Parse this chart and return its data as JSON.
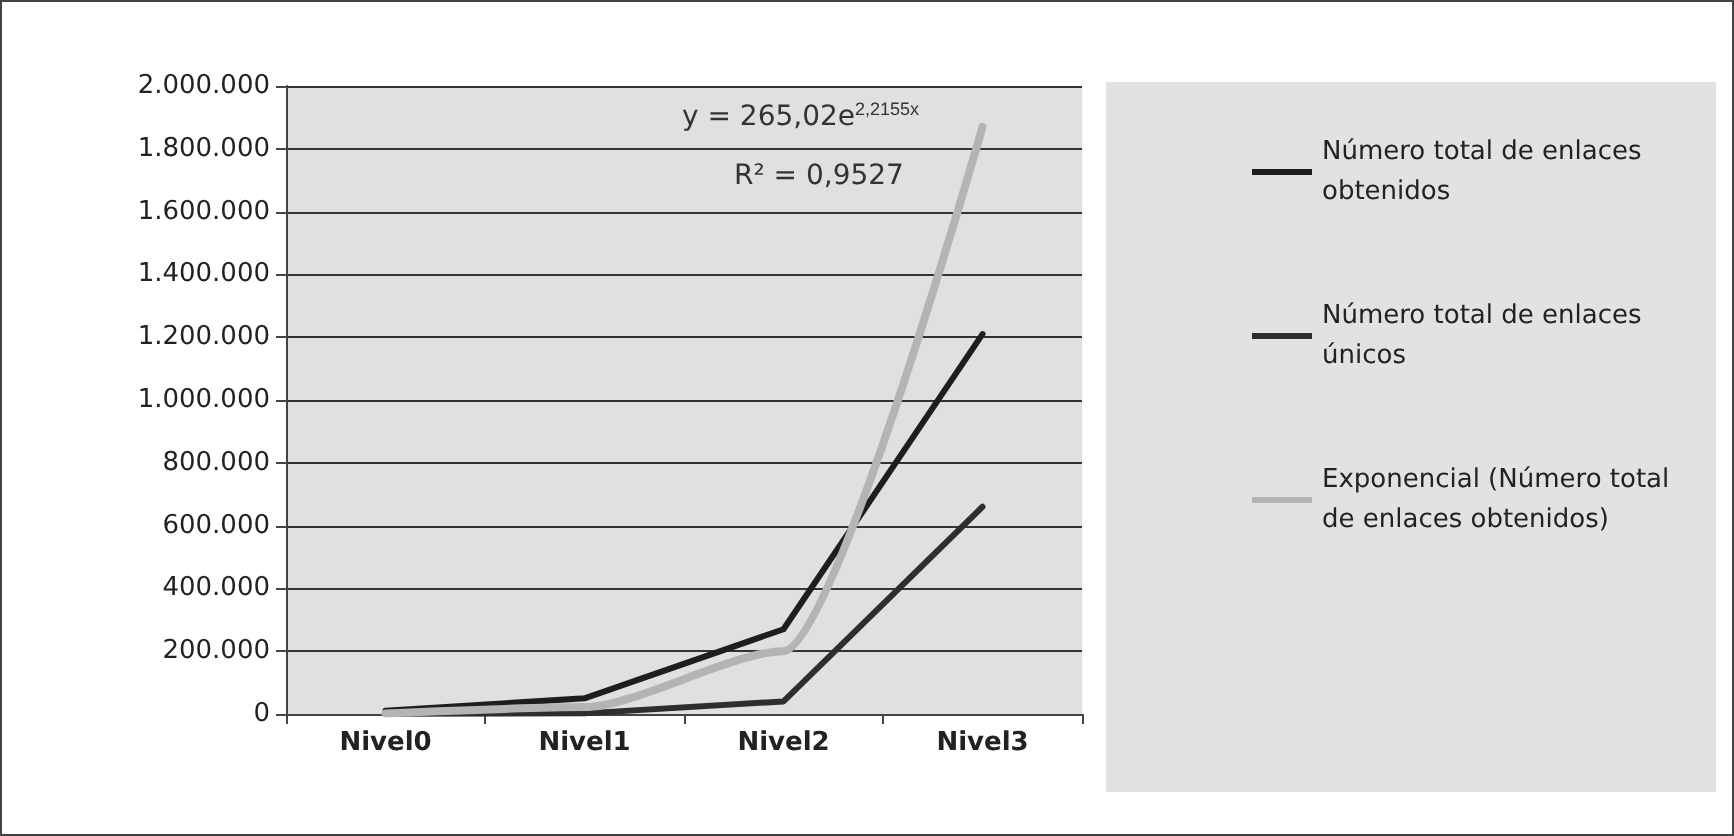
{
  "chart_data": {
    "type": "line",
    "categories": [
      "Nivel0",
      "Nivel1",
      "Nivel2",
      "Nivel3"
    ],
    "series": [
      {
        "name": "Número total de enlaces obtenidos",
        "color": "#1e1e1e",
        "values": [
          10000,
          50000,
          270000,
          1210000
        ]
      },
      {
        "name": "Número total de enlaces únicos",
        "color": "#2e2e2e",
        "values": [
          1000,
          2000,
          40000,
          660000
        ]
      },
      {
        "name": "Exponencial (Número total de enlaces obtenidos)",
        "color": "#b4b4b4",
        "type": "line",
        "x": [
          "Nivel0",
          "Nivel1",
          "Nivel2",
          "Nivel3"
        ],
        "values": [
          2000,
          22000,
          200000,
          1870000
        ]
      }
    ],
    "annotations": [
      "y = 265,02e$^{2,2155x}$",
      "R² = 0,9527"
    ],
    "ylim": [
      0,
      2000000
    ],
    "yticks": [
      {
        "value": 0,
        "label": "0"
      },
      {
        "value": 200000,
        "label": "200.000"
      },
      {
        "value": 400000,
        "label": "400.000"
      },
      {
        "value": 600000,
        "label": "600.000"
      },
      {
        "value": 800000,
        "label": "800.000"
      },
      {
        "value": 1000000,
        "label": "1.000.000"
      },
      {
        "value": 1200000,
        "label": "1.200.000"
      },
      {
        "value": 1400000,
        "label": "1.400.000"
      },
      {
        "value": 1600000,
        "label": "1.600.000"
      },
      {
        "value": 1800000,
        "label": "1.800.000"
      },
      {
        "value": 2000000,
        "label": "2.000.000"
      }
    ],
    "grid": "y",
    "legend": "right",
    "marker": "none"
  }
}
